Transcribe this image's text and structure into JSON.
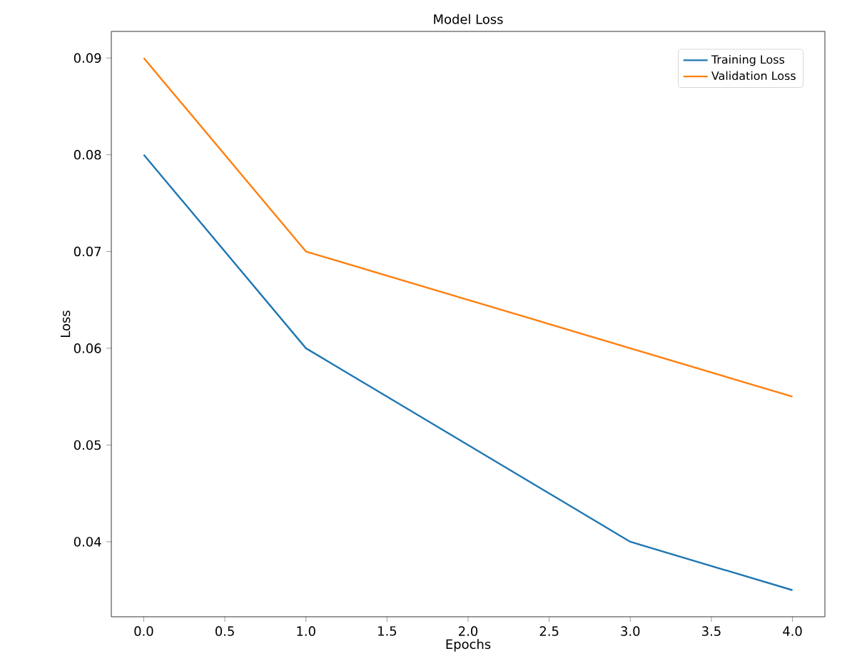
{
  "chart_data": {
    "type": "line",
    "title": "Model Loss",
    "xlabel": "Epochs",
    "ylabel": "Loss",
    "x": [
      0,
      1,
      2,
      3,
      4
    ],
    "series": [
      {
        "name": "Training Loss",
        "color": "#1f77b4",
        "values": [
          0.08,
          0.06,
          0.05,
          0.04,
          0.035
        ]
      },
      {
        "name": "Validation Loss",
        "color": "#ff7f0e",
        "values": [
          0.09,
          0.07,
          0.065,
          0.06,
          0.055
        ]
      }
    ],
    "xlim": [
      -0.2,
      4.2
    ],
    "ylim": [
      0.03225,
      0.09275
    ],
    "xticks": [
      {
        "value": 0,
        "label": "0.0"
      },
      {
        "value": 0.5,
        "label": "0.5"
      },
      {
        "value": 1,
        "label": "1.0"
      },
      {
        "value": 1.5,
        "label": "1.5"
      },
      {
        "value": 2,
        "label": "2.0"
      },
      {
        "value": 2.5,
        "label": "2.5"
      },
      {
        "value": 3,
        "label": "3.0"
      },
      {
        "value": 3.5,
        "label": "3.5"
      },
      {
        "value": 4,
        "label": "4.0"
      }
    ],
    "yticks": [
      0.04,
      0.05,
      0.06,
      0.07,
      0.08,
      0.09
    ],
    "legend": "top right",
    "grid": false
  }
}
